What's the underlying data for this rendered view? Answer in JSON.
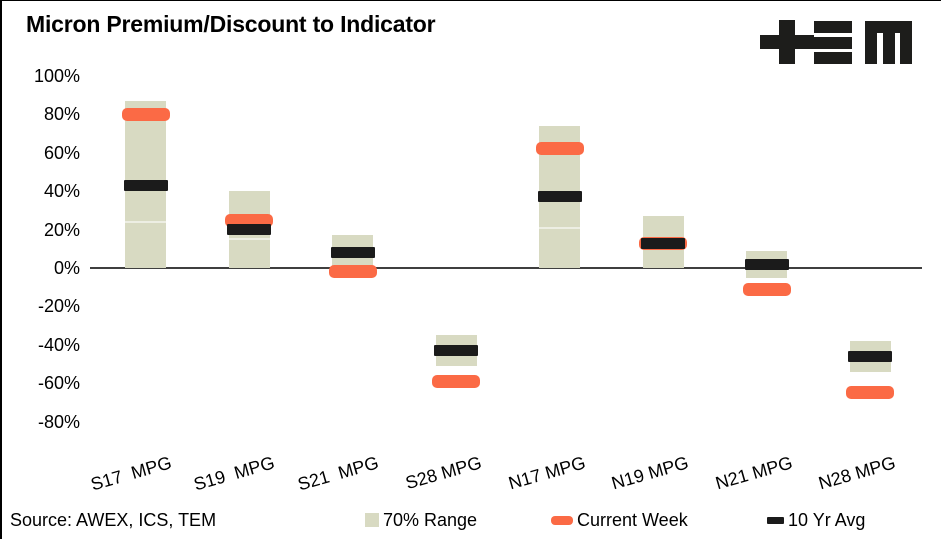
{
  "header": {
    "title": "Micron Premium/Discount to Indicator"
  },
  "footer": {
    "source": "Source: AWEX, ICS, TEM"
  },
  "colors": {
    "range": "#d8dac2",
    "current": "#fb6a45",
    "avg": "#1b1b1b",
    "axis_line": "#3f3f3f",
    "text": "#000000",
    "logo": "#1d1d1b"
  },
  "chart_data": {
    "type": "bar",
    "subtype": "floating-range-with-markers",
    "title": "Micron Premium/Discount to Indicator",
    "categories": [
      "S17  MPG",
      "S19  MPG",
      "S21  MPG",
      "S28 MPG",
      "N17 MPG",
      "N19 MPG",
      "N21 MPG",
      "N28 MPG"
    ],
    "series": [
      {
        "name": "70% Range",
        "type": "range",
        "low": [
          0,
          0,
          0,
          -51,
          0,
          0,
          -5,
          -54
        ],
        "high": [
          87,
          40,
          17,
          -35,
          74,
          27,
          9,
          -38
        ]
      },
      {
        "name": "Current Week",
        "type": "marker",
        "values": [
          80,
          25,
          -2,
          -59,
          62,
          13,
          -11,
          -65
        ]
      },
      {
        "name": "10 Yr Avg",
        "type": "marker",
        "values": [
          43,
          20,
          8,
          -43,
          37,
          13,
          2,
          -46
        ]
      }
    ],
    "segment_dividers": [
      24,
      15,
      null,
      null,
      21,
      null,
      null,
      null
    ],
    "ylim": [
      -80,
      100
    ],
    "yticks": [
      100,
      80,
      60,
      40,
      20,
      0,
      -20,
      -40,
      -60,
      -80
    ],
    "ytick_format": "percent",
    "grid": false,
    "legend_position": "bottom",
    "xlabel": "",
    "ylabel": ""
  }
}
